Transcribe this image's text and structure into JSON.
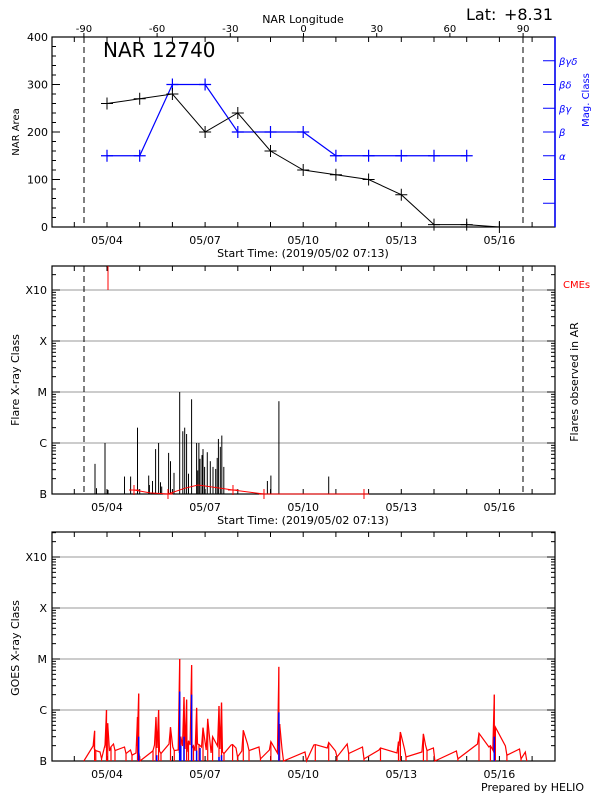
{
  "header": {
    "lat_label": "Lat:",
    "lat_value": "+8.31",
    "longitude_axis_label": "NAR Longitude",
    "footer": "Prepared by HELIO"
  },
  "chart_data": [
    {
      "type": "line",
      "title": "NAR 12740",
      "xlabel": "Start Time: (2019/05/02 07:13)",
      "ylabel": "NAR Area",
      "y2label": "Mag. Class",
      "x_tick_labels": [
        "05/04",
        "05/07",
        "05/10",
        "05/13",
        "05/16"
      ],
      "top_axis_label": "NAR Longitude",
      "top_axis_ticks": [
        -90,
        -60,
        -30,
        0,
        30,
        60,
        90
      ],
      "limb_markers_longitude": [
        -90,
        90
      ],
      "ylim": [
        0,
        400
      ],
      "y_tick_labels": [
        "0",
        "100",
        "200",
        "300",
        "400"
      ],
      "y2_tick_labels": [
        "α",
        "β",
        "βγ",
        "βδ",
        "βγδ"
      ],
      "colors": {
        "area": "#000000",
        "mag_class": "#0000ff"
      },
      "series": [
        {
          "key": "area",
          "x": [
            "05/04 00:00",
            "05/05 00:00",
            "05/06 00:00",
            "05/07 00:00",
            "05/08 00:00",
            "05/09 00:00",
            "05/10 00:00",
            "05/11 00:00",
            "05/12 00:00",
            "05/13 00:00",
            "05/14 00:00",
            "05/15 00:00",
            "05/16 00:00"
          ],
          "values": [
            260,
            270,
            280,
            200,
            240,
            160,
            120,
            110,
            100,
            68,
            5,
            5,
            0
          ]
        },
        {
          "key": "mag_class",
          "x": [
            "05/04 00:00",
            "05/05 00:00",
            "05/06 00:00",
            "05/07 00:00",
            "05/08 00:00",
            "05/09 00:00",
            "05/10 00:00",
            "05/11 00:00",
            "05/12 00:00",
            "05/13 00:00",
            "05/14 00:00",
            "05/15 00:00"
          ],
          "values": [
            "α",
            "α",
            "βδ",
            "βδ",
            "β",
            "β",
            "β",
            "α",
            "α",
            "α",
            "α",
            "α"
          ]
        }
      ]
    },
    {
      "type": "bar",
      "xlabel": "Start Time: (2019/05/02 07:13)",
      "ylabel": "Flare X-ray Class",
      "y2label": "Flares observed in AR",
      "cme_label": "CMEs",
      "x_tick_labels": [
        "05/04",
        "05/07",
        "05/10",
        "05/13",
        "05/16"
      ],
      "y_tick_labels": [
        "B",
        "C",
        "M",
        "X",
        "X10"
      ],
      "yscale": "log",
      "grid": true,
      "colors": {
        "flares": "#000000",
        "cmes": "#ff0000",
        "grid": "#999999"
      },
      "flares": [
        [
          "05/03 15:12",
          "B3.9"
        ],
        [
          "05/03 16:18",
          "B1.3"
        ],
        [
          "05/03 22:32",
          "C1.0"
        ],
        [
          "05/04 00:44",
          "B1.2"
        ],
        [
          "05/04 12:50",
          "B2.2"
        ],
        [
          "05/04 17:20",
          "B2.2"
        ],
        [
          "05/04 22:23",
          "C2.0"
        ],
        [
          "05/05 06:36",
          "B2.3"
        ],
        [
          "05/05 07:07",
          "B1.5"
        ],
        [
          "05/05 09:23",
          "B1.8"
        ],
        [
          "05/05 11:40",
          "B7.6"
        ],
        [
          "05/05 13:52",
          "C1.0"
        ],
        [
          "05/05 15:16",
          "B1.7"
        ],
        [
          "05/05 16:09",
          "B1.4"
        ],
        [
          "05/05 21:13",
          "B6.4"
        ],
        [
          "05/05 22:36",
          "B4.4"
        ],
        [
          "05/06 01:10",
          "B2.6"
        ],
        [
          "05/06 05:21",
          "M1.0"
        ],
        [
          "05/06 07:38",
          "C1.7"
        ],
        [
          "05/06 09:01",
          "C2.0"
        ],
        [
          "05/06 10:25",
          "C1.5"
        ],
        [
          "05/06 11:49",
          "B2.5"
        ],
        [
          "05/06 14:05",
          "C7.2"
        ],
        [
          "05/06 17:46",
          "C1.0"
        ],
        [
          "05/06 18:34",
          "B2.9"
        ],
        [
          "05/06 19:26",
          "C1.0"
        ],
        [
          "05/06 20:15",
          "B4.9"
        ],
        [
          "05/06 21:43",
          "B5.8"
        ],
        [
          "05/06 22:28",
          "B7.6"
        ],
        [
          "05/06 23:38",
          "B3.4"
        ],
        [
          "05/07 01:36",
          "B6.6"
        ],
        [
          "05/07 03:49",
          "B4.4"
        ],
        [
          "05/07 05:48",
          "B3.4"
        ],
        [
          "05/07 07:47",
          "B3.1"
        ],
        [
          "05/07 08:53",
          "B5.1"
        ],
        [
          "05/07 09:46",
          "C1.2"
        ],
        [
          "05/07 11:10",
          "B8.4"
        ],
        [
          "05/07 12:16",
          "C1.4"
        ],
        [
          "05/07 13:44",
          "B3.4"
        ],
        [
          "05/08 21:43",
          "B1.8"
        ],
        [
          "05/09 00:17",
          "B2.3"
        ],
        [
          "05/09 06:10",
          "C6.6"
        ],
        [
          "05/10 18:43",
          "B2.2"
        ]
      ],
      "cme_flagged": [
        "05/04 00:44"
      ],
      "cme_track": [
        [
          "05/04 19:49",
          "B1.2"
        ],
        [
          "05/05 07:34",
          "B1.05"
        ],
        [
          "05/05 20:46",
          "B1.0"
        ],
        [
          "05/06 09:15",
          "B1.3"
        ],
        [
          "05/06 18:50",
          "B1.5"
        ],
        [
          "05/07 20:28",
          "B1.2"
        ],
        [
          "05/08 19:13",
          "B1.0"
        ],
        [
          "05/11 20:37",
          "B1.0"
        ]
      ],
      "cme_markers": [
        "05/04 19:49",
        "05/05 20:46",
        "05/07 20:28",
        "05/08 19:13",
        "05/11 20:37"
      ]
    },
    {
      "type": "line",
      "xlabel": "",
      "ylabel": "GOES X-ray Class",
      "x_tick_labels": [
        "05/04",
        "05/07",
        "05/10",
        "05/13",
        "05/16"
      ],
      "y_tick_labels": [
        "B",
        "C",
        "M",
        "X",
        "X10"
      ],
      "yscale": "log",
      "grid": true,
      "colors": {
        "goes": "#ff0000",
        "ar_flares": "#0000ff"
      },
      "series": [
        {
          "key": "goes",
          "points": [
            [
              "05/03 07:00",
              "B1.0"
            ],
            [
              "05/03 14:54",
              "B3.9"
            ],
            [
              "05/03 15:46",
              "B1.6"
            ],
            [
              "05/03 20:00",
              "B1.1"
            ],
            [
              "05/03 23:38",
              "C1.0"
            ],
            [
              "05/04 00:31",
              "B5.5"
            ],
            [
              "05/04 02:56",
              "B1.9"
            ],
            [
              "05/04 05:52",
              "B1.6"
            ],
            [
              "05/04 13:57",
              "B1.4"
            ],
            [
              "05/04 18:21",
              "B1.3"
            ],
            [
              "05/04 22:23",
              "B7.3"
            ],
            [
              "05/04 23:15",
              "C2.1"
            ],
            [
              "05/05 00:13",
              "B1.0"
            ],
            [
              "05/05 09:46",
              "B1.6"
            ],
            [
              "05/05 11:57",
              "B7.3"
            ],
            [
              "05/05 13:52",
              "C1.0"
            ],
            [
              "05/05 15:37",
              "B1.4"
            ],
            [
              "05/05 22:36",
              "B4.6"
            ],
            [
              "05/06 01:23",
              "B1.6"
            ],
            [
              "05/06 05:21",
              "M1.0"
            ],
            [
              "05/06 06:10",
              "B3.0"
            ],
            [
              "05/06 08:31",
              "C1.8"
            ],
            [
              "05/06 10:25",
              "C1.6"
            ],
            [
              "05/06 11:49",
              "B2.5"
            ],
            [
              "05/06 14:05",
              "C7.6"
            ],
            [
              "05/06 15:29",
              "B2.0"
            ],
            [
              "05/06 17:46",
              "C1.1"
            ],
            [
              "05/06 19:31",
              "B2.1"
            ],
            [
              "05/06 22:28",
              "B4.5"
            ],
            [
              "05/07 01:55",
              "B6.7"
            ],
            [
              "05/07 05:30",
              "B3.0"
            ],
            [
              "05/07 10:12",
              "C1.2"
            ],
            [
              "05/07 12:03",
              "C1.4"
            ],
            [
              "05/07 13:52",
              "B1.4"
            ],
            [
              "05/07 20:11",
              "B2.1"
            ],
            [
              "05/07 23:47",
              "B1.2"
            ],
            [
              "05/08 04:02",
              "B4.0"
            ],
            [
              "05/08 08:14",
              "B1.6"
            ],
            [
              "05/08 16:39",
              "B1.1"
            ],
            [
              "05/09 00:17",
              "B2.4"
            ],
            [
              "05/09 06:10",
              "C7.0"
            ],
            [
              "05/09 06:45",
              "B5.3"
            ],
            [
              "05/09 09:33",
              "B1.0"
            ],
            [
              "05/10 02:25",
              "B1.0"
            ],
            [
              "05/10 08:53",
              "B2.1"
            ],
            [
              "05/10 18:43",
              "B2.3"
            ],
            [
              "05/11 00:49",
              "B1.2"
            ],
            [
              "05/11 09:23",
              "B1.4"
            ],
            [
              "05/11 20:37",
              "B1.1"
            ],
            [
              "05/12 08:44",
              "B1.8"
            ],
            [
              "05/12 21:56",
              "B2.4"
            ],
            [
              "05/12 23:20",
              "B3.7"
            ],
            [
              "05/13 03:27",
              "B1.2"
            ],
            [
              "05/13 16:13",
              "B3.4"
            ],
            [
              "05/13 18:52",
              "B1.6"
            ],
            [
              "05/14 00:40",
              "B1.0"
            ],
            [
              "05/14 17:33",
              "B1.1"
            ],
            [
              "05/15 09:01",
              "B3.5"
            ],
            [
              "05/15 17:24",
              "B2.0"
            ],
            [
              "05/15 20:15",
              "C2.0"
            ],
            [
              "05/15 21:04",
              "B4.6"
            ],
            [
              "05/16 05:30",
              "B1.3"
            ],
            [
              "05/16 15:52",
              "B1.1"
            ],
            [
              "05/16 20:07",
              "B1.0"
            ]
          ]
        },
        {
          "key": "ar_flares",
          "points": [
            [
              "05/04 23:15",
              "B3.0"
            ],
            [
              "05/05 12:30",
              "B1.3"
            ],
            [
              "05/06 05:21",
              "C2.3"
            ],
            [
              "05/06 06:10",
              "B2.0"
            ],
            [
              "05/06 08:31",
              "B3.0"
            ],
            [
              "05/06 14:05",
              "C2.0"
            ],
            [
              "05/06 17:46",
              "B1.6"
            ],
            [
              "05/06 20:15",
              "B1.8"
            ],
            [
              "05/07 10:12",
              "B1.2"
            ],
            [
              "05/07 12:03",
              "B1.3"
            ],
            [
              "05/09 06:10",
              "B9.0"
            ],
            [
              "05/15 20:15",
              "B3.0"
            ]
          ]
        }
      ]
    }
  ]
}
